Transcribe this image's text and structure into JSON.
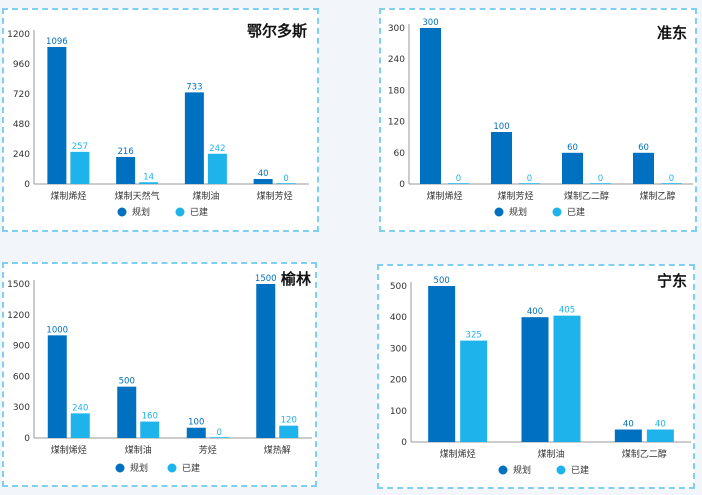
{
  "colors": {
    "planned": "#0070c0",
    "built": "#1fb3ec"
  },
  "legend": {
    "planned": "规划",
    "built": "已建"
  },
  "chart_data": [
    {
      "type": "bar",
      "title": "鄂尔多斯",
      "categories": [
        "煤制烯烃",
        "煤制天然气",
        "煤制油",
        "煤制芳烃"
      ],
      "series": [
        {
          "name": "规划",
          "values": [
            1096,
            216,
            733,
            40
          ]
        },
        {
          "name": "已建",
          "values": [
            257,
            14,
            242,
            0
          ]
        }
      ],
      "yticks": [
        0,
        240,
        480,
        720,
        960,
        1200
      ],
      "ylim": [
        0,
        1200
      ],
      "legend_position": "bottom",
      "grid": false
    },
    {
      "type": "bar",
      "title": "准东",
      "categories": [
        "煤制烯烃",
        "煤制芳烃",
        "煤制乙二醇",
        "煤制乙醇"
      ],
      "series": [
        {
          "name": "规划",
          "values": [
            300,
            100,
            60,
            60
          ]
        },
        {
          "name": "已建",
          "values": [
            0,
            0,
            0,
            0
          ]
        }
      ],
      "yticks": [
        0,
        60,
        120,
        180,
        240,
        300
      ],
      "ylim": [
        0,
        300
      ],
      "legend_position": "bottom",
      "grid": false
    },
    {
      "type": "bar",
      "title": "榆林",
      "categories": [
        "煤制烯烃",
        "煤制油",
        "芳烃",
        "煤热解"
      ],
      "series": [
        {
          "name": "规划",
          "values": [
            1000,
            500,
            100,
            1500
          ]
        },
        {
          "name": "已建",
          "values": [
            240,
            160,
            0,
            120
          ]
        }
      ],
      "yticks": [
        0,
        300,
        600,
        900,
        1200,
        1500
      ],
      "ylim": [
        0,
        1500
      ],
      "legend_position": "bottom",
      "grid": false
    },
    {
      "type": "bar",
      "title": "宁东",
      "categories": [
        "煤制烯烃",
        "煤制油",
        "煤制乙二醇"
      ],
      "series": [
        {
          "name": "规划",
          "values": [
            500,
            400,
            40
          ]
        },
        {
          "name": "已建",
          "values": [
            325,
            405,
            40
          ]
        }
      ],
      "yticks": [
        0,
        100,
        200,
        300,
        400,
        500
      ],
      "ylim": [
        0,
        500
      ],
      "legend_position": "bottom",
      "grid": false
    }
  ]
}
